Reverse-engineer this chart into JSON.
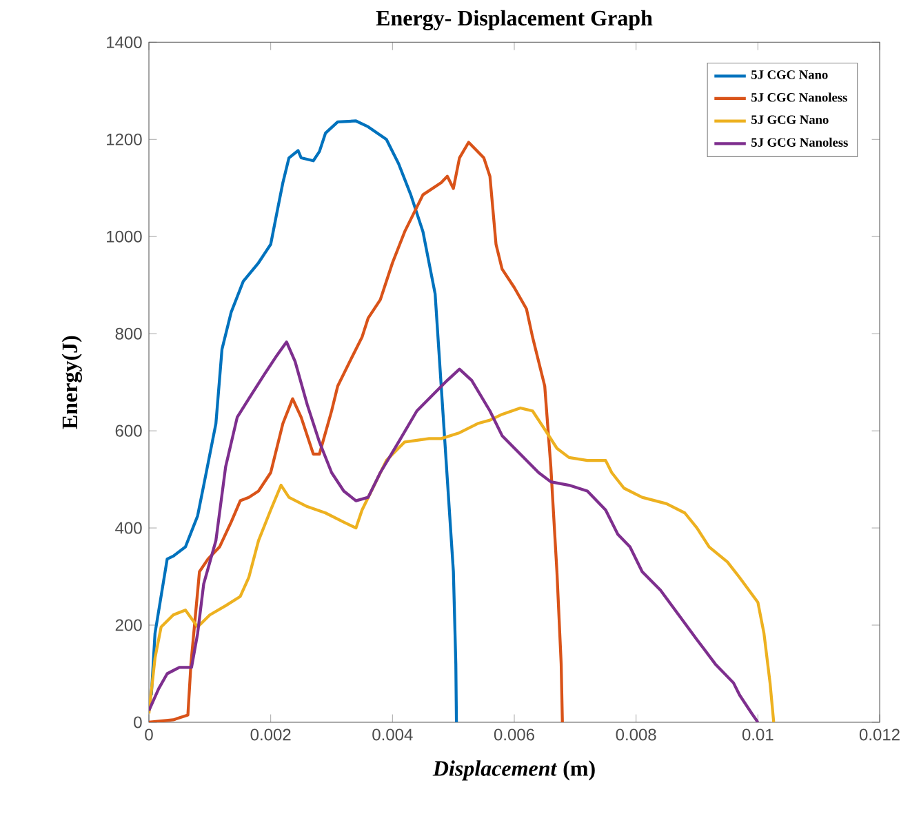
{
  "chart_data": {
    "type": "line",
    "title": "Energy- Displacement Graph",
    "xlabel": "*Displacement* (m)",
    "ylabel": "Energy(J)",
    "xlim": [
      0,
      0.012
    ],
    "xticks": [
      0,
      0.002,
      0.004,
      0.006,
      0.008,
      0.01,
      0.012
    ],
    "ylim": [
      0,
      1400
    ],
    "yticks": [
      0,
      200,
      400,
      600,
      800,
      1000,
      1200,
      1400
    ],
    "grid": false,
    "legend": "top right",
    "marker": "none",
    "line_style": "solid",
    "series": [
      {
        "name": "5J CGC Nano",
        "color": "#0072bd",
        "x": [
          4e-05,
          0.0001,
          0.0003,
          0.0004,
          0.0006,
          0.0008,
          0.0009,
          0.0011,
          0.0012,
          0.00135,
          0.00155,
          0.0018,
          0.0019,
          0.002,
          0.0021,
          0.0022,
          0.0023,
          0.00245,
          0.0025,
          0.0027,
          0.0028,
          0.0029,
          0.0031,
          0.0034,
          0.0036,
          0.0039,
          0.0041,
          0.0043,
          0.0045,
          0.0047,
          0.0048,
          0.0049,
          0.005,
          0.00504,
          0.00505
        ],
        "values": [
          56,
          183,
          336,
          342,
          361,
          425,
          488,
          615,
          768,
          844,
          908,
          946,
          965,
          984,
          1048,
          1111,
          1162,
          1177,
          1162,
          1156,
          1175,
          1213,
          1236,
          1238,
          1226,
          1200,
          1150,
          1086,
          1010,
          882,
          692,
          501,
          310,
          120,
          0
        ]
      },
      {
        "name": "5J CGC Nanoless",
        "color": "#d95319",
        "x": [
          0,
          0.0004,
          0.00064,
          0.00069,
          0.00083,
          0.00097,
          0.00116,
          0.00135,
          0.0015,
          0.00164,
          0.0018,
          0.002,
          0.0022,
          0.00236,
          0.0025,
          0.0027,
          0.0028,
          0.003,
          0.0031,
          0.0033,
          0.0035,
          0.0036,
          0.0038,
          0.004,
          0.0042,
          0.0045,
          0.0048,
          0.0049,
          0.005,
          0.0051,
          0.00525,
          0.0055,
          0.0056,
          0.0057,
          0.0058,
          0.006,
          0.0062,
          0.0063,
          0.0065,
          0.0066,
          0.0067,
          0.00677,
          0.00679
        ],
        "values": [
          0,
          5,
          15,
          120,
          310,
          336,
          361,
          412,
          456,
          463,
          476,
          514,
          615,
          666,
          628,
          552,
          552,
          641,
          692,
          743,
          793,
          832,
          870,
          946,
          1010,
          1086,
          1111,
          1124,
          1099,
          1162,
          1194,
          1162,
          1124,
          984,
          933,
          895,
          851,
          793,
          692,
          526,
          310,
          120,
          0
        ]
      },
      {
        "name": "5J GCG Nano",
        "color": "#edb120",
        "x": [
          0,
          0.0001,
          0.0002,
          0.0004,
          0.0006,
          0.0008,
          0.001,
          0.00126,
          0.0015,
          0.00164,
          0.0018,
          0.002,
          0.00217,
          0.0023,
          0.0026,
          0.0029,
          0.0032,
          0.0034,
          0.0035,
          0.0037,
          0.0039,
          0.0042,
          0.0046,
          0.0048,
          0.0051,
          0.0054,
          0.0056,
          0.0058,
          0.0061,
          0.0063,
          0.0065,
          0.0067,
          0.0069,
          0.0072,
          0.0075,
          0.0076,
          0.0078,
          0.0081,
          0.0085,
          0.0088,
          0.009,
          0.0092,
          0.0095,
          0.0097,
          0.01,
          0.0101,
          0.0102,
          0.01026
        ],
        "values": [
          18,
          132,
          196,
          221,
          231,
          196,
          221,
          240,
          259,
          298,
          374,
          437,
          488,
          463,
          444,
          431,
          412,
          400,
          437,
          488,
          539,
          577,
          584,
          584,
          596,
          615,
          622,
          634,
          647,
          641,
          603,
          564,
          545,
          539,
          539,
          514,
          482,
          463,
          450,
          431,
          400,
          361,
          330,
          298,
          247,
          183,
          81,
          0
        ]
      },
      {
        "name": "5J GCG Nanoless",
        "color": "#7e2f8e",
        "x": [
          0,
          0.00016,
          0.0003,
          0.0005,
          0.0007,
          0.0008,
          0.0009,
          0.0011,
          0.00126,
          0.00145,
          0.00164,
          0.0019,
          0.0021,
          0.00226,
          0.0024,
          0.0026,
          0.0028,
          0.003,
          0.0032,
          0.0034,
          0.0036,
          0.0038,
          0.0041,
          0.0044,
          0.0047,
          0.0049,
          0.0051,
          0.0053,
          0.0056,
          0.0058,
          0.0061,
          0.0064,
          0.0066,
          0.0069,
          0.0072,
          0.0075,
          0.0077,
          0.0079,
          0.0081,
          0.0084,
          0.0087,
          0.009,
          0.0093,
          0.0096,
          0.0097,
          0.0099,
          0.01
        ],
        "values": [
          24,
          69,
          100,
          113,
          113,
          183,
          285,
          374,
          526,
          628,
          666,
          717,
          755,
          783,
          743,
          654,
          577,
          514,
          476,
          456,
          463,
          514,
          577,
          641,
          679,
          704,
          727,
          704,
          641,
          590,
          552,
          514,
          495,
          488,
          476,
          437,
          387,
          361,
          310,
          272,
          221,
          170,
          120,
          81,
          56,
          18,
          0
        ]
      }
    ]
  }
}
